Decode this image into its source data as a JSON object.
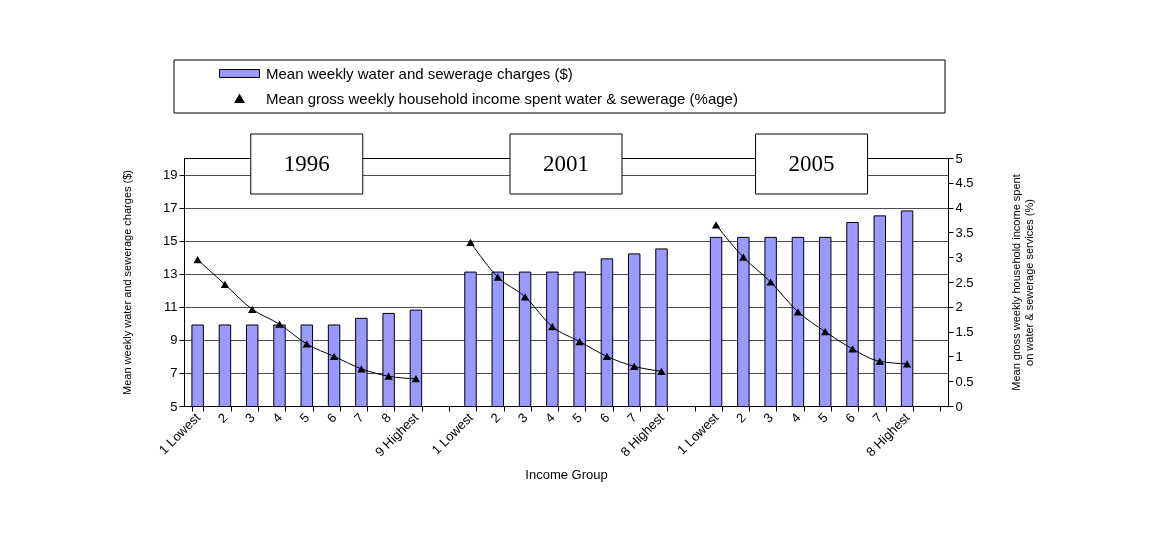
{
  "chart_data": {
    "type": "bar",
    "xlabel": "Income Group",
    "ylabel": "Mean weekly water and sewerage charges ($)",
    "y2label": "Mean gross weekly household income spent\non water & sewerage services (%)",
    "annotations": [
      "1996",
      "2001",
      "2005"
    ],
    "categories": [
      "1 Lowest",
      "2",
      "3",
      "4",
      "5",
      "6",
      "7",
      "8",
      "9 Highest",
      null,
      "1 Lowest",
      "2",
      "3",
      "4",
      "5",
      "6",
      "7",
      "8 Highest",
      null,
      "1 Lowest",
      "2",
      "3",
      "4",
      "5",
      "6",
      "7",
      "8 Highest",
      null
    ],
    "series": [
      {
        "name": "Mean weekly water and sewerage charges ($)",
        "color": "#9999ff",
        "values": [
          9.9,
          9.9,
          9.9,
          9.9,
          9.9,
          9.9,
          10.3,
          10.6,
          10.8,
          null,
          13.1,
          13.1,
          13.1,
          13.1,
          13.1,
          13.9,
          14.2,
          14.5,
          null,
          15.2,
          15.2,
          15.2,
          15.2,
          15.2,
          16.1,
          16.5,
          16.8,
          null
        ]
      },
      {
        "name": "Mean gross weekly household income spent water & sewerage (%age)",
        "type": "line",
        "axis": "y2",
        "color": "#000000",
        "marker": "triangle",
        "values": [
          2.95,
          2.45,
          1.95,
          1.65,
          1.25,
          1.0,
          0.75,
          0.6,
          0.55,
          null,
          3.3,
          2.6,
          2.2,
          1.6,
          1.3,
          1.0,
          0.8,
          0.7,
          null,
          3.65,
          3.0,
          2.5,
          1.9,
          1.5,
          1.15,
          0.9,
          0.85,
          null
        ]
      }
    ],
    "ylim": [
      5,
      20
    ],
    "yticks": [
      5,
      7,
      9,
      11,
      13,
      15,
      17,
      19
    ],
    "y2lim": [
      0,
      5
    ],
    "y2ticks": [
      0,
      0.5,
      1,
      1.5,
      2,
      2.5,
      3,
      3.5,
      4,
      4.5,
      5
    ],
    "grid": "y",
    "legend": "top"
  }
}
